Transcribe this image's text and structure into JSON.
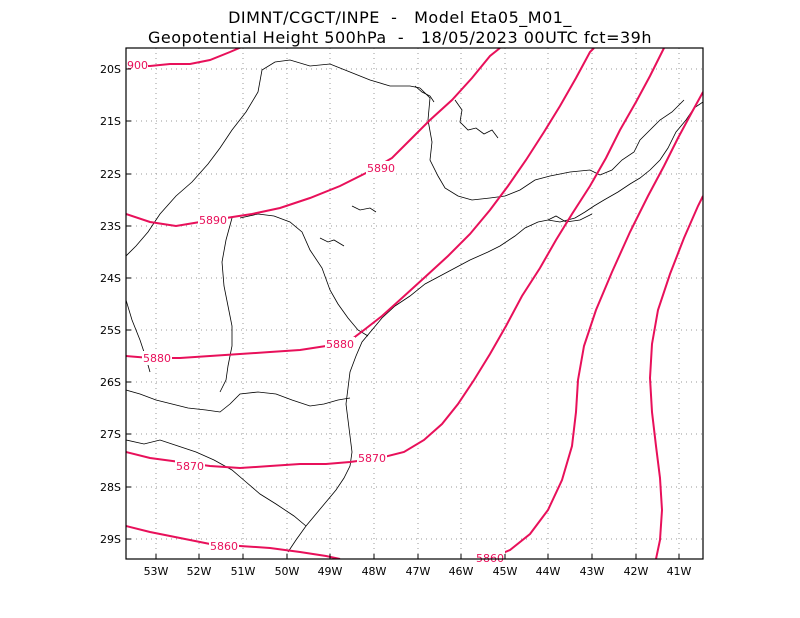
{
  "header": {
    "line1": "DIMNT/CGCT/INPE  -   Model Eta05_M01_",
    "line2": "Geopotential Height 500hPa  -   18/05/2023 00UTC fct=39h"
  },
  "map": {
    "lat_labels": [
      "20S",
      "21S",
      "22S",
      "23S",
      "24S",
      "25S",
      "26S",
      "27S",
      "28S",
      "29S"
    ],
    "lon_labels": [
      "53W",
      "52W",
      "51W",
      "50W",
      "49W",
      "48W",
      "47W",
      "46W",
      "45W",
      "44W",
      "43W",
      "42W",
      "41W"
    ],
    "contour_color": "#e8105a",
    "contour_labels": [
      {
        "id": "c5900",
        "text": "900"
      },
      {
        "id": "c5890a",
        "text": "5890"
      },
      {
        "id": "c5890b",
        "text": "5890"
      },
      {
        "id": "c5880a",
        "text": "5880"
      },
      {
        "id": "c5880b",
        "text": "5880"
      },
      {
        "id": "c5870a",
        "text": "5870"
      },
      {
        "id": "c5870b",
        "text": "5870"
      },
      {
        "id": "c5860a",
        "text": "5860"
      },
      {
        "id": "c5860b",
        "text": "5860"
      }
    ]
  }
}
